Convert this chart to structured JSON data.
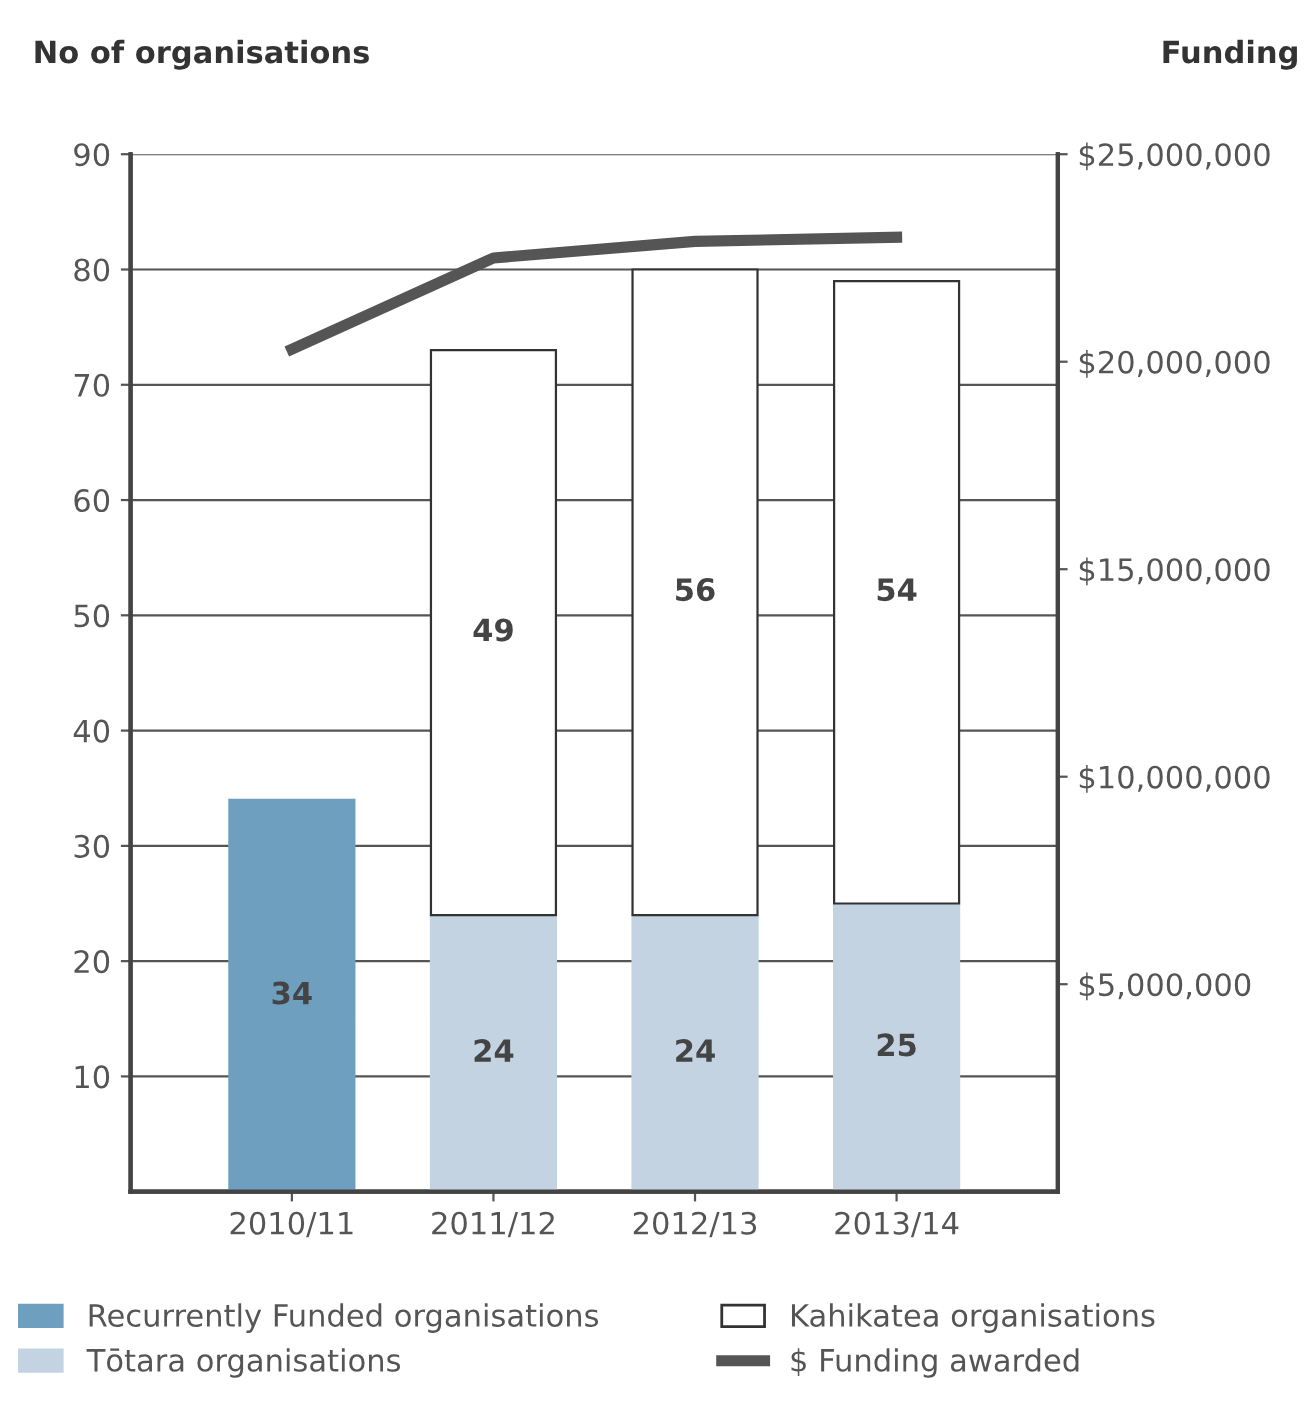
{
  "chart_data": {
    "type": "bar",
    "stacked": true,
    "ylabel": "No of organisations",
    "y2label": "Funding",
    "categories": [
      "2010/11",
      "2011/12",
      "2012/13",
      "2013/14"
    ],
    "series": [
      {
        "name": "Recurrently Funded organisations",
        "color": "#6f9fbf",
        "values": [
          34,
          null,
          null,
          null
        ],
        "value_labels": [
          "34",
          null,
          null,
          null
        ]
      },
      {
        "name": "Tōtara organisations",
        "color": "#c3d3e2",
        "values": [
          null,
          24,
          24,
          25
        ],
        "value_labels": [
          null,
          "24",
          "24",
          "25"
        ]
      },
      {
        "name": "Kahikatea organisations",
        "color": "#ffffff",
        "values": [
          null,
          49,
          56,
          54
        ],
        "value_labels": [
          null,
          "49",
          "56",
          "54"
        ]
      },
      {
        "name": "$ Funding awarded",
        "type": "line",
        "axis": "y2",
        "color": "#555555",
        "values": [
          20300000,
          22500000,
          22900000,
          23000000
        ]
      }
    ],
    "ylim": [
      0,
      90
    ],
    "yticks": [
      10,
      20,
      30,
      40,
      50,
      60,
      70,
      80,
      90
    ],
    "y2lim": [
      0,
      25000000
    ],
    "y2ticks": [
      {
        "value": 5000000,
        "label": "$5,000,000"
      },
      {
        "value": 10000000,
        "label": "$10,000,000"
      },
      {
        "value": 15000000,
        "label": "$15,000,000"
      },
      {
        "value": 20000000,
        "label": "$20,000,000"
      },
      {
        "value": 25000000,
        "label": "$25,000,000"
      }
    ],
    "grid": "y",
    "legend": "bottom",
    "marker": "none",
    "line_style": "solid"
  }
}
